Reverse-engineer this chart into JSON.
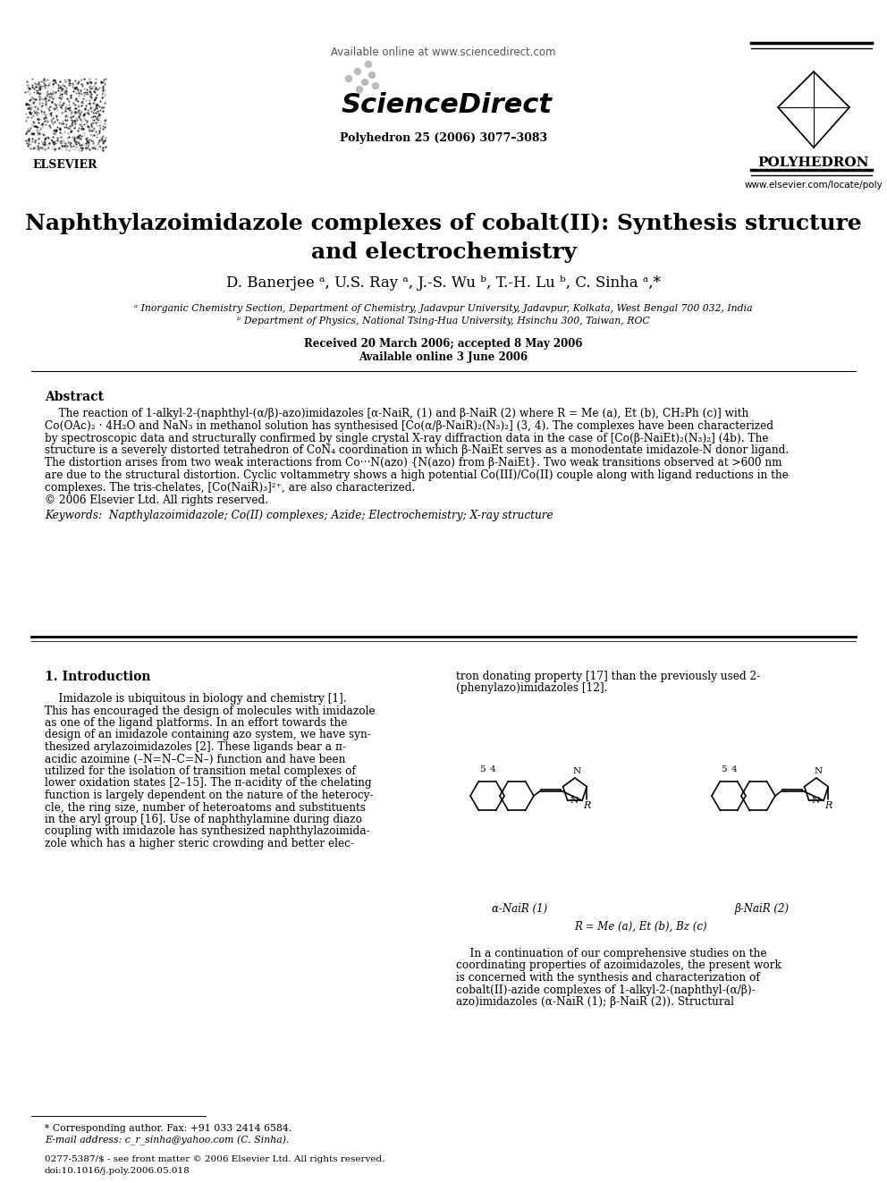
{
  "title_line1": "Naphthylazoimidazole complexes of cobalt(II): Synthesis structure",
  "title_line2": "and electrochemistry",
  "authors": "D. Banerjee ᵃ, U.S. Ray ᵃ, J.-S. Wu ᵇ, T.-H. Lu ᵇ, C. Sinha ᵃ,*",
  "affil_a": "ᵃ Inorganic Chemistry Section, Department of Chemistry, Jadavpur University, Jadavpur, Kolkata, West Bengal 700 032, India",
  "affil_b": "ᵇ Department of Physics, National Tsing-Hua University, Hsinchu 300, Taiwan, ROC",
  "received": "Received 20 March 2006; accepted 8 May 2006",
  "available": "Available online 3 June 2006",
  "journal_header": "Available online at www.sciencedirect.com",
  "journal_name": "ScienceDirect",
  "journal_info": "Polyhedron 25 (2006) 3077–3083",
  "publisher_name": "POLYHEDRON",
  "publisher_url": "www.elsevier.com/locate/poly",
  "abstract_title": "Abstract",
  "abstract_body": [
    "    The reaction of 1-alkyl-2-(naphthyl-(α/β)-azo)imidazoles [α-NaiR, (1) and β-NaiR (2) where R = Me (a), Et (b), CH₂Ph (c)] with",
    "Co(OAc)₂ · 4H₂O and NaN₃ in methanol solution has synthesised [Co(α/β-NaiR)₂(N₃)₂] (3, 4). The complexes have been characterized",
    "by spectroscopic data and structurally confirmed by single crystal X-ray diffraction data in the case of [Co(β-NaiEt)₂(N₃)₂] (4b). The",
    "structure is a severely distorted tetrahedron of CoN₄ coordination in which β-NaiEt serves as a monodentate imidazole-N donor ligand.",
    "The distortion arises from two weak interactions from Co···N(azo) {N(azo) from β-NaiEt}. Two weak transitions observed at >600 nm",
    "are due to the structural distortion. Cyclic voltammetry shows a high potential Co(III)/Co(II) couple along with ligand reductions in the",
    "complexes. The tris-chelates, [Co(NaiR)₃]²⁺, are also characterized.",
    "© 2006 Elsevier Ltd. All rights reserved."
  ],
  "keywords_line": "Keywords:  Napthylazoimidazole; Co(II) complexes; Azide; Electrochemistry; X-ray structure",
  "section1_title": "1. Introduction",
  "intro_col1": [
    "    Imidazole is ubiquitous in biology and chemistry [1].",
    "This has encouraged the design of molecules with imidazole",
    "as one of the ligand platforms. In an effort towards the",
    "design of an imidazole containing azo system, we have syn-",
    "thesized arylazoimidazoles [2]. These ligands bear a π-",
    "acidic azoimine (–N=N–C=N–) function and have been",
    "utilized for the isolation of transition metal complexes of",
    "lower oxidation states [2–15]. The π-acidity of the chelating",
    "function is largely dependent on the nature of the heterocy-",
    "cle, the ring size, number of heteroatoms and substituents",
    "in the aryl group [16]. Use of naphthylamine during diazo",
    "coupling with imidazole has synthesized naphthylazoimida-",
    "zole which has a higher steric crowding and better elec-"
  ],
  "intro_col2_top": [
    "tron donating property [17] than the previously used 2-",
    "(phenylazo)imidazoles [12]."
  ],
  "intro_col2_bottom": [
    "    In a continuation of our comprehensive studies on the",
    "coordinating properties of azoimidazoles, the present work",
    "is concerned with the synthesis and characterization of",
    "cobalt(II)-azide complexes of 1-alkyl-2-(naphthyl-(α/β)-",
    "azo)imidazoles (α-NaiR (1); β-NaiR (2)). Structural"
  ],
  "alpha_label": "α-NaiR (1)",
  "beta_label": "β-NaiR (2)",
  "r_eq_label": "R = Me (a), Et (b), Bz (c)",
  "footnote_line": "* Corresponding author. Fax: +91 033 2414 6584.",
  "email_line": "E-mail address: c_r_sinha@yahoo.com (C. Sinha).",
  "issn_line": "0277-5387/$ - see front matter © 2006 Elsevier Ltd. All rights reserved.",
  "doi_line": "doi:10.1016/j.poly.2006.05.018",
  "bg": "#ffffff",
  "black": "#000000",
  "blue": "#0000bb",
  "gray": "#888888",
  "darkgray": "#555555"
}
